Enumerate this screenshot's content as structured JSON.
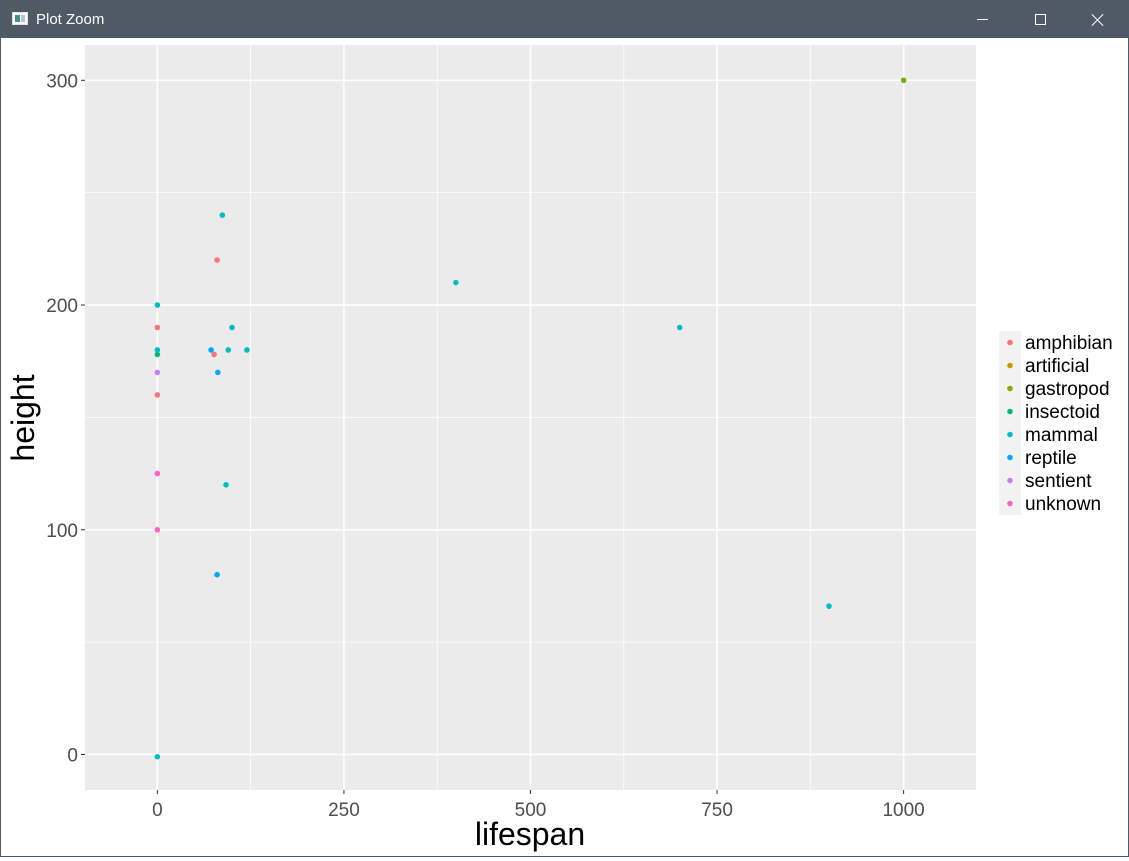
{
  "window": {
    "title": "Plot Zoom",
    "buttons": {
      "minimize": "minimize-icon",
      "maximize": "maximize-icon",
      "close": "close-icon"
    }
  },
  "chart_data": {
    "type": "scatter",
    "title": "",
    "xlabel": "lifespan",
    "ylabel": "height",
    "xlim": [
      -97,
      1097
    ],
    "ylim": [
      -15.8,
      315.7
    ],
    "x_ticks": [
      0,
      250,
      500,
      750,
      1000
    ],
    "x_tick_labels": [
      "0",
      "250",
      "500",
      "750",
      "1000"
    ],
    "y_ticks": [
      0,
      100,
      200,
      300
    ],
    "y_tick_labels": [
      "0",
      "100",
      "200",
      "300"
    ],
    "grid": true,
    "panel_background": "#ebebeb",
    "grid_color": "#ffffff",
    "legend": {
      "position": "right",
      "entries": [
        "amphibian",
        "artificial",
        "gastropod",
        "insectoid",
        "mammal",
        "reptile",
        "sentient",
        "unknown"
      ]
    },
    "colors": {
      "amphibian": "#f8766d",
      "artificial": "#cd9600",
      "gastropod": "#7cae00",
      "insectoid": "#00be67",
      "mammal": "#00bfc4",
      "reptile": "#00a9ff",
      "sentient": "#c77cff",
      "unknown": "#ff61cc"
    },
    "series": [
      {
        "name": "amphibian",
        "points": [
          [
            0,
            190
          ],
          [
            0,
            160
          ],
          [
            80,
            220
          ],
          [
            76,
            178
          ]
        ]
      },
      {
        "name": "artificial",
        "points": []
      },
      {
        "name": "gastropod",
        "points": [
          [
            1000,
            300
          ]
        ]
      },
      {
        "name": "insectoid",
        "points": [
          [
            0,
            178
          ]
        ]
      },
      {
        "name": "mammal",
        "points": [
          [
            0,
            200
          ],
          [
            0,
            180
          ],
          [
            0,
            -1
          ],
          [
            87,
            240
          ],
          [
            100,
            190
          ],
          [
            95,
            180
          ],
          [
            120,
            180
          ],
          [
            92,
            120
          ],
          [
            400,
            210
          ],
          [
            700,
            190
          ],
          [
            900,
            66
          ]
        ]
      },
      {
        "name": "reptile",
        "points": [
          [
            72,
            180
          ],
          [
            81,
            170
          ],
          [
            80,
            80
          ]
        ]
      },
      {
        "name": "sentient",
        "points": [
          [
            0,
            170
          ]
        ]
      },
      {
        "name": "unknown",
        "points": [
          [
            0,
            125
          ],
          [
            0,
            100
          ]
        ]
      }
    ]
  }
}
